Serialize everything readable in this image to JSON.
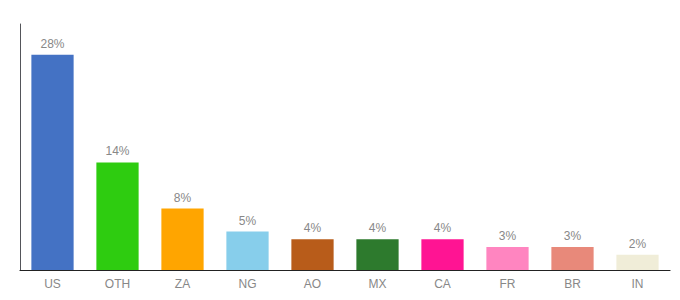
{
  "chart_data": {
    "type": "bar",
    "categories": [
      "US",
      "OTH",
      "ZA",
      "NG",
      "AO",
      "MX",
      "CA",
      "FR",
      "BR",
      "IN"
    ],
    "values": [
      28,
      14,
      8,
      5,
      4,
      4,
      4,
      3,
      3,
      2
    ],
    "value_labels": [
      "28%",
      "14%",
      "8%",
      "5%",
      "4%",
      "4%",
      "4%",
      "3%",
      "3%",
      "2%"
    ],
    "data_labels": true,
    "colors": [
      "#4472C4",
      "#2ECC10",
      "#FFA500",
      "#87CEEB",
      "#B85C1A",
      "#2D7A2D",
      "#FF1493",
      "#FF85C0",
      "#E8897A",
      "#F0EDD8"
    ],
    "ylim": [
      0,
      32
    ],
    "tick_labels": "x",
    "grid": false
  }
}
